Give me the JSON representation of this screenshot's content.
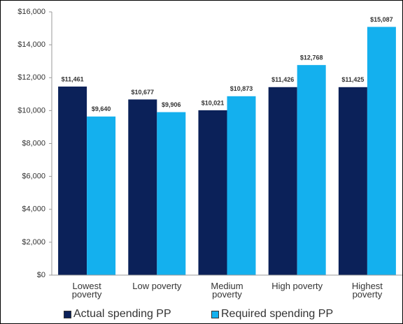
{
  "chart_data": {
    "type": "bar",
    "categories": [
      "Lowest poverty",
      "Low poverty",
      "Medium poverty",
      "High poverty",
      "Highest poverty"
    ],
    "series": [
      {
        "name": "Actual spending PP",
        "color": "#0b2159",
        "values": [
          11461,
          10677,
          10021,
          11426,
          11425
        ],
        "value_labels": [
          "$11,461",
          "$10,677",
          "$10,021",
          "$11,426",
          "$11,425"
        ]
      },
      {
        "name": "Required spending PP",
        "color": "#14b0ee",
        "values": [
          9640,
          9906,
          10873,
          12768,
          15087
        ],
        "value_labels": [
          "$9,640",
          "$9,906",
          "$10,873",
          "$12,768",
          "$15,087"
        ]
      }
    ],
    "ylim": [
      0,
      16000
    ],
    "yticks": [
      {
        "value": 0,
        "label": "$0"
      },
      {
        "value": 2000,
        "label": "$2,000"
      },
      {
        "value": 4000,
        "label": "$4,000"
      },
      {
        "value": 6000,
        "label": "$6,000"
      },
      {
        "value": 8000,
        "label": "$8,000"
      },
      {
        "value": 10000,
        "label": "$10,000"
      },
      {
        "value": 12000,
        "label": "$12,000"
      },
      {
        "value": 14000,
        "label": "$14,000"
      },
      {
        "value": 16000,
        "label": "$16,000"
      }
    ],
    "grid": false,
    "legend": "bottom"
  }
}
